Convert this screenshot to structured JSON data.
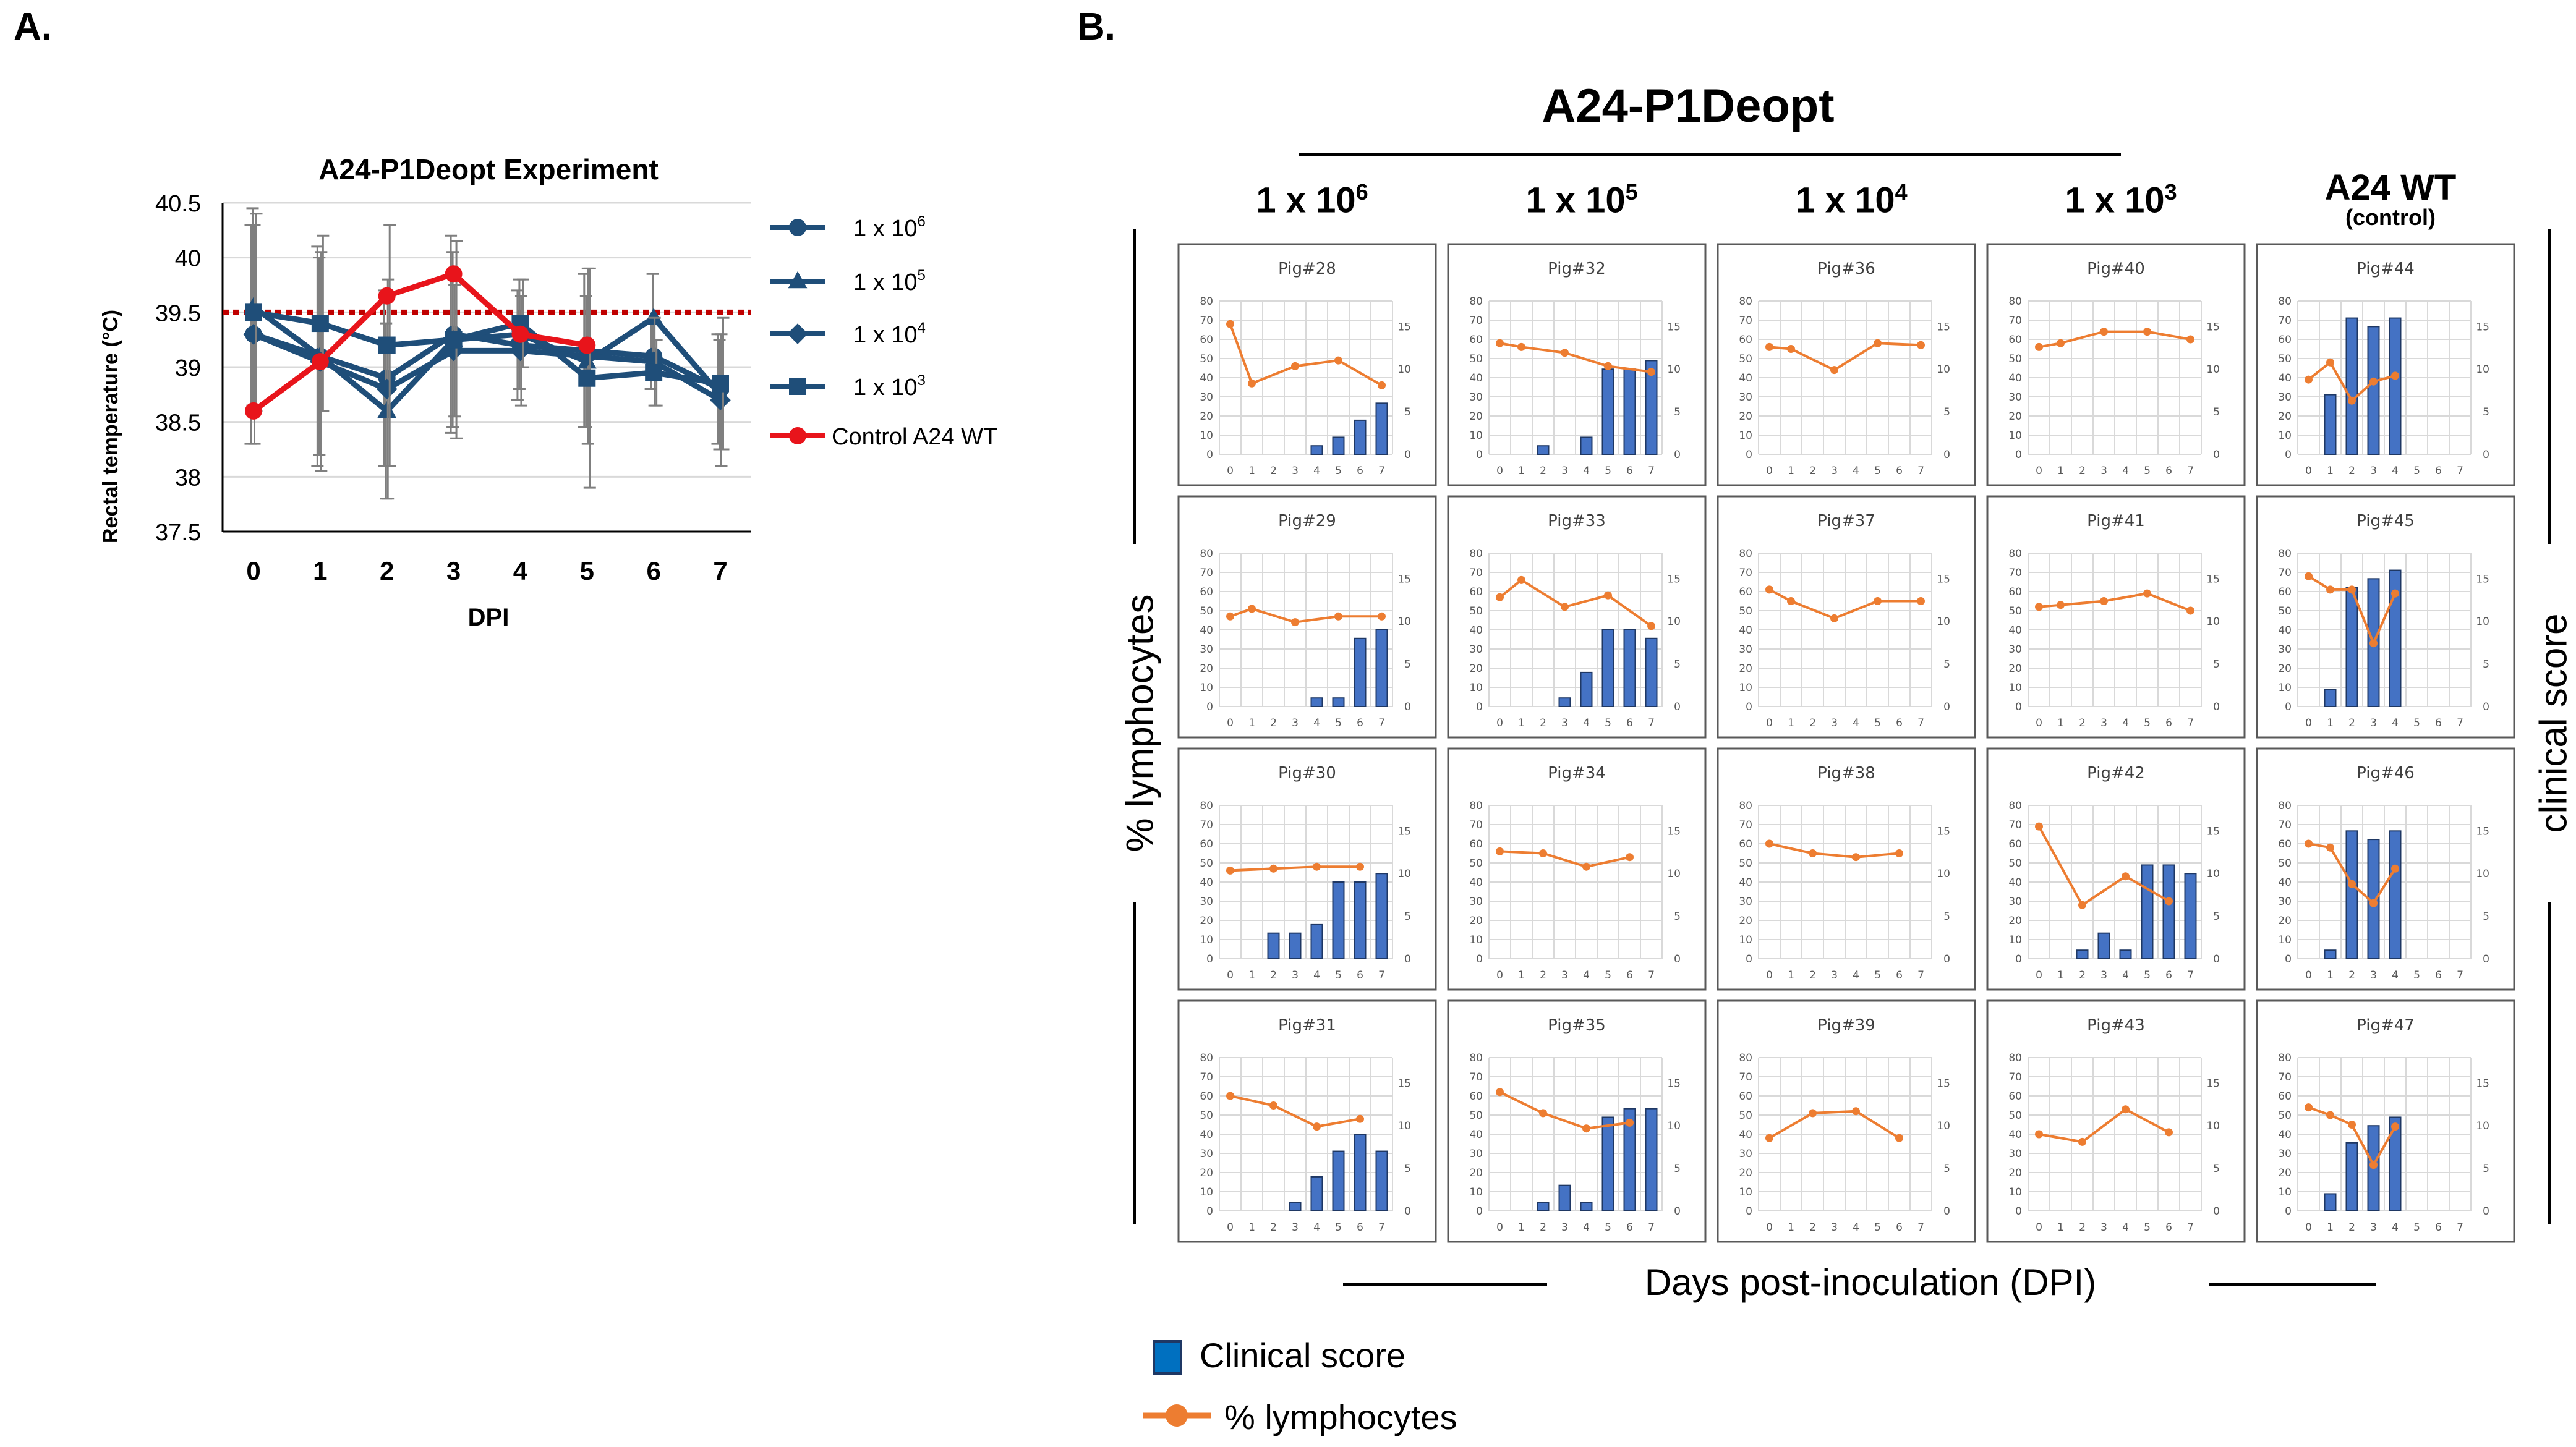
{
  "panel_a": {
    "letter": "A."
  },
  "panel_b": {
    "letter": "B.",
    "header_title": "A24-P1Deopt",
    "doses": [
      {
        "base": "1 x 10",
        "exp": "6"
      },
      {
        "base": "1 x 10",
        "exp": "5"
      },
      {
        "base": "1 x 10",
        "exp": "4"
      },
      {
        "base": "1 x 10",
        "exp": "3"
      }
    ],
    "control_title": "A24 WT",
    "control_sub": "(control)",
    "y_left_label": "% lymphocytes",
    "y_right_label": "clinical score",
    "x_label": "Days post-inoculation (DPI)",
    "legend": {
      "bar": "Clinical score",
      "line": "% lymphocytes"
    }
  },
  "colors": {
    "navy": "#1f4e79",
    "red": "#e8141b",
    "dashed": "#c00000",
    "bar": "#4472c4",
    "bar_edge": "#1f3864",
    "orange": "#ed7d31",
    "grid": "#d9d9d9",
    "error": "#7f7f7f"
  },
  "chart_data": [
    {
      "type": "line",
      "title": "A24-P1Deopt Experiment",
      "xlabel": "DPI",
      "ylabel": "Rectal temperature (°C)",
      "x": [
        0,
        1,
        2,
        3,
        4,
        5,
        6,
        7
      ],
      "x_tick_labels": [
        "0",
        "1",
        "2",
        "3",
        "4",
        "5",
        "6",
        "7"
      ],
      "ylim": [
        37.5,
        40.5
      ],
      "y_ticks": [
        "37.5",
        "38",
        "38.5",
        "39",
        "39.5",
        "40",
        "40.5"
      ],
      "threshold": 39.5,
      "series": [
        {
          "name": "1 x 10",
          "exp": "6",
          "marker": "circle",
          "color": "#1f4e79",
          "values": [
            39.3,
            39.1,
            38.9,
            39.3,
            39.2,
            39.15,
            39.1,
            38.8
          ],
          "err": [
            1.0,
            1.0,
            0.8,
            0.9,
            0.5,
            0.7,
            0.3,
            0.5
          ]
        },
        {
          "name": "1 x 10",
          "exp": "5",
          "marker": "triangle",
          "color": "#1f4e79",
          "values": [
            39.55,
            39.1,
            38.6,
            39.25,
            39.3,
            39.05,
            39.45,
            38.75
          ],
          "err": [
            0.9,
            0.9,
            0.8,
            0.8,
            0.5,
            0.6,
            0.4,
            0.5
          ]
        },
        {
          "name": "1 x 10",
          "exp": "4",
          "marker": "diamond",
          "color": "#1f4e79",
          "values": [
            39.3,
            39.05,
            38.8,
            39.15,
            39.15,
            39.1,
            39.05,
            38.7
          ],
          "err": [
            1.0,
            1.0,
            1.0,
            0.6,
            0.5,
            0.8,
            0.4,
            0.6
          ]
        },
        {
          "name": "1 x 10",
          "exp": "3",
          "marker": "square",
          "color": "#1f4e79",
          "values": [
            39.5,
            39.4,
            39.2,
            39.25,
            39.4,
            38.9,
            38.95,
            38.85
          ],
          "err": [
            0.9,
            0.8,
            1.1,
            0.9,
            0.4,
            1.0,
            0.3,
            0.6
          ]
        },
        {
          "name": "Control A24 WT",
          "exp": "",
          "marker": "circle",
          "color": "#e8141b",
          "values": [
            38.6,
            39.05,
            39.65,
            39.85,
            39.3,
            39.2,
            null,
            null
          ],
          "err": [
            0,
            0,
            0,
            0,
            0,
            0,
            0,
            0
          ]
        }
      ]
    },
    {
      "type": "bar+line",
      "layout": "4 rows x 5 columns small multiples",
      "x": [
        0,
        1,
        2,
        3,
        4,
        5,
        6,
        7
      ],
      "left_axis": {
        "ylim": [
          0,
          80
        ],
        "ticks": [
          "0",
          "10",
          "20",
          "30",
          "40",
          "50",
          "60",
          "70",
          "80"
        ]
      },
      "right_axis": {
        "ylim": [
          0,
          18
        ],
        "ticks": [
          "0",
          "5",
          "10",
          "15"
        ]
      },
      "panels": [
        {
          "title": "Pig#28",
          "col": 0,
          "row": 0,
          "bars": [
            null,
            null,
            null,
            null,
            1,
            2,
            4,
            6
          ],
          "line": [
            [
              0,
              68
            ],
            [
              1,
              37
            ],
            [
              3,
              46
            ],
            [
              5,
              49
            ],
            [
              7,
              36
            ]
          ]
        },
        {
          "title": "Pig#29",
          "col": 0,
          "row": 1,
          "bars": [
            null,
            null,
            null,
            null,
            1,
            1,
            8,
            9
          ],
          "line": [
            [
              0,
              47
            ],
            [
              1,
              51
            ],
            [
              3,
              44
            ],
            [
              5,
              47
            ],
            [
              7,
              47
            ]
          ]
        },
        {
          "title": "Pig#30",
          "col": 0,
          "row": 2,
          "bars": [
            null,
            null,
            3,
            3,
            4,
            9,
            9,
            10
          ],
          "line": [
            [
              0,
              46
            ],
            [
              2,
              47
            ],
            [
              4,
              48
            ],
            [
              6,
              48
            ]
          ]
        },
        {
          "title": "Pig#31",
          "col": 0,
          "row": 3,
          "bars": [
            null,
            null,
            null,
            1,
            4,
            7,
            9,
            7
          ],
          "line": [
            [
              0,
              60
            ],
            [
              2,
              55
            ],
            [
              4,
              44
            ],
            [
              6,
              48
            ]
          ]
        },
        {
          "title": "Pig#32",
          "col": 1,
          "row": 0,
          "bars": [
            null,
            null,
            1,
            null,
            2,
            10,
            10,
            11
          ],
          "line": [
            [
              0,
              58
            ],
            [
              1,
              56
            ],
            [
              3,
              53
            ],
            [
              5,
              46
            ],
            [
              7,
              43
            ]
          ]
        },
        {
          "title": "Pig#33",
          "col": 1,
          "row": 1,
          "bars": [
            null,
            null,
            null,
            1,
            4,
            9,
            9,
            8
          ],
          "line": [
            [
              0,
              57
            ],
            [
              1,
              66
            ],
            [
              3,
              52
            ],
            [
              5,
              58
            ],
            [
              7,
              42
            ]
          ]
        },
        {
          "title": "Pig#34",
          "col": 1,
          "row": 2,
          "bars": [
            null,
            null,
            null,
            null,
            null,
            null,
            null,
            null
          ],
          "line": [
            [
              0,
              56
            ],
            [
              2,
              55
            ],
            [
              4,
              48
            ],
            [
              6,
              53
            ]
          ]
        },
        {
          "title": "Pig#35",
          "col": 1,
          "row": 3,
          "bars": [
            null,
            null,
            1,
            3,
            1,
            11,
            12,
            12
          ],
          "line": [
            [
              0,
              62
            ],
            [
              2,
              51
            ],
            [
              4,
              43
            ],
            [
              6,
              46
            ]
          ]
        },
        {
          "title": "Pig#36",
          "col": 2,
          "row": 0,
          "bars": [
            null,
            null,
            null,
            null,
            null,
            null,
            null,
            null
          ],
          "line": [
            [
              0,
              56
            ],
            [
              1,
              55
            ],
            [
              3,
              44
            ],
            [
              5,
              58
            ],
            [
              7,
              57
            ]
          ]
        },
        {
          "title": "Pig#37",
          "col": 2,
          "row": 1,
          "bars": [
            null,
            null,
            null,
            null,
            null,
            null,
            null,
            null
          ],
          "line": [
            [
              0,
              61
            ],
            [
              1,
              55
            ],
            [
              3,
              46
            ],
            [
              5,
              55
            ],
            [
              7,
              55
            ]
          ]
        },
        {
          "title": "Pig#38",
          "col": 2,
          "row": 2,
          "bars": [
            null,
            null,
            null,
            null,
            null,
            null,
            null,
            null
          ],
          "line": [
            [
              0,
              60
            ],
            [
              2,
              55
            ],
            [
              4,
              53
            ],
            [
              6,
              55
            ]
          ]
        },
        {
          "title": "Pig#39",
          "col": 2,
          "row": 3,
          "bars": [
            null,
            null,
            null,
            null,
            null,
            null,
            null,
            null
          ],
          "line": [
            [
              0,
              38
            ],
            [
              2,
              51
            ],
            [
              4,
              52
            ],
            [
              6,
              38
            ]
          ]
        },
        {
          "title": "Pig#40",
          "col": 3,
          "row": 0,
          "bars": [
            null,
            null,
            null,
            null,
            null,
            null,
            null,
            null
          ],
          "line": [
            [
              0,
              56
            ],
            [
              1,
              58
            ],
            [
              3,
              64
            ],
            [
              5,
              64
            ],
            [
              7,
              60
            ]
          ]
        },
        {
          "title": "Pig#41",
          "col": 3,
          "row": 1,
          "bars": [
            null,
            null,
            null,
            null,
            null,
            null,
            null,
            null
          ],
          "line": [
            [
              0,
              52
            ],
            [
              1,
              53
            ],
            [
              3,
              55
            ],
            [
              5,
              59
            ],
            [
              7,
              50
            ]
          ]
        },
        {
          "title": "Pig#42",
          "col": 3,
          "row": 2,
          "bars": [
            null,
            null,
            1,
            3,
            1,
            11,
            11,
            10
          ],
          "line": [
            [
              0,
              69
            ],
            [
              2,
              28
            ],
            [
              4,
              43
            ],
            [
              6,
              30
            ]
          ]
        },
        {
          "title": "Pig#43",
          "col": 3,
          "row": 3,
          "bars": [
            null,
            null,
            null,
            null,
            null,
            null,
            null,
            null
          ],
          "line": [
            [
              0,
              40
            ],
            [
              2,
              36
            ],
            [
              4,
              53
            ],
            [
              6,
              41
            ]
          ]
        },
        {
          "title": "Pig#44",
          "col": 4,
          "row": 0,
          "bars": [
            null,
            7,
            16,
            15,
            16,
            null,
            null,
            null
          ],
          "line": [
            [
              0,
              39
            ],
            [
              1,
              48
            ],
            [
              2,
              28
            ],
            [
              3,
              38
            ],
            [
              4,
              41
            ]
          ]
        },
        {
          "title": "Pig#45",
          "col": 4,
          "row": 1,
          "bars": [
            null,
            2,
            14,
            15,
            16,
            null,
            null,
            null
          ],
          "line": [
            [
              0,
              68
            ],
            [
              1,
              61
            ],
            [
              2,
              61
            ],
            [
              3,
              33
            ],
            [
              4,
              59
            ]
          ]
        },
        {
          "title": "Pig#46",
          "col": 4,
          "row": 2,
          "bars": [
            null,
            1,
            15,
            14,
            15,
            null,
            null,
            null
          ],
          "line": [
            [
              0,
              60
            ],
            [
              1,
              58
            ],
            [
              2,
              39
            ],
            [
              3,
              29
            ],
            [
              4,
              47
            ]
          ]
        },
        {
          "title": "Pig#47",
          "col": 4,
          "row": 3,
          "bars": [
            null,
            2,
            8,
            10,
            11,
            null,
            null,
            null
          ],
          "line": [
            [
              0,
              54
            ],
            [
              1,
              50
            ],
            [
              2,
              45
            ],
            [
              3,
              24
            ],
            [
              4,
              44
            ]
          ]
        }
      ]
    }
  ]
}
